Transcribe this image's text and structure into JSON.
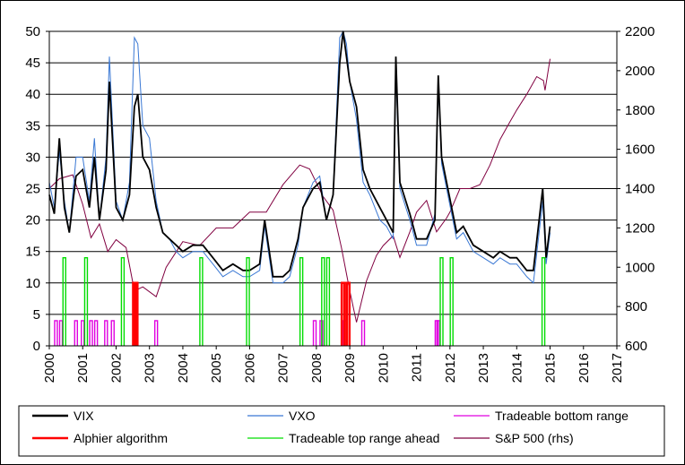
{
  "chart_data": {
    "type": "line",
    "title": "",
    "xlabel": "",
    "ylabel": "",
    "y2label": "",
    "x_ticks": [
      "2000",
      "2001",
      "2002",
      "2003",
      "2004",
      "2005",
      "2006",
      "2007",
      "2008",
      "2009",
      "2010",
      "2011",
      "2012",
      "2013",
      "2014",
      "2015",
      "2016",
      "2017"
    ],
    "xlim": [
      2000,
      2017
    ],
    "y_left_ticks": [
      "0",
      "5",
      "10",
      "15",
      "20",
      "25",
      "30",
      "35",
      "40",
      "45",
      "50"
    ],
    "ylim": [
      0,
      50
    ],
    "y_right_ticks": [
      "600",
      "800",
      "1000",
      "1200",
      "1400",
      "1600",
      "1800",
      "2000",
      "2200"
    ],
    "y2lim": [
      600,
      2200
    ],
    "grid": "horizontal",
    "legend_position": "bottom",
    "series": [
      {
        "name": "VIX",
        "axis": "left",
        "color": "#000000",
        "x": [
          2000.0,
          2000.15,
          2000.3,
          2000.45,
          2000.6,
          2000.8,
          2001.0,
          2001.2,
          2001.35,
          2001.5,
          2001.7,
          2001.8,
          2002.0,
          2002.2,
          2002.4,
          2002.55,
          2002.65,
          2002.8,
          2003.0,
          2003.2,
          2003.4,
          2003.6,
          2003.8,
          2004.0,
          2004.3,
          2004.6,
          2004.9,
          2005.2,
          2005.5,
          2005.8,
          2006.0,
          2006.3,
          2006.45,
          2006.7,
          2007.0,
          2007.2,
          2007.45,
          2007.6,
          2007.9,
          2008.1,
          2008.3,
          2008.5,
          2008.7,
          2008.8,
          2008.9,
          2009.0,
          2009.2,
          2009.4,
          2009.6,
          2009.9,
          2010.1,
          2010.3,
          2010.38,
          2010.5,
          2010.8,
          2011.0,
          2011.3,
          2011.55,
          2011.65,
          2011.75,
          2011.9,
          2012.2,
          2012.4,
          2012.7,
          2013.0,
          2013.3,
          2013.5,
          2013.8,
          2014.0,
          2014.3,
          2014.5,
          2014.78,
          2014.88,
          2015.0
        ],
        "values": [
          24,
          21,
          33,
          22,
          18,
          27,
          28,
          22,
          30,
          20,
          28,
          42,
          22,
          20,
          24,
          38,
          40,
          30,
          28,
          22,
          18,
          17,
          16,
          15,
          16,
          16,
          14,
          12,
          13,
          12,
          12,
          13,
          20,
          11,
          11,
          12,
          17,
          22,
          25,
          26,
          20,
          24,
          45,
          57,
          46,
          42,
          38,
          28,
          25,
          22,
          20,
          18,
          46,
          26,
          21,
          17,
          17,
          20,
          43,
          30,
          26,
          18,
          19,
          16,
          15,
          14,
          15,
          14,
          14,
          12,
          12,
          25,
          14,
          19
        ]
      },
      {
        "name": "VXO",
        "axis": "left",
        "color": "#3a78d4",
        "x": [
          2000.0,
          2000.15,
          2000.3,
          2000.45,
          2000.6,
          2000.8,
          2001.0,
          2001.2,
          2001.35,
          2001.5,
          2001.7,
          2001.8,
          2002.0,
          2002.2,
          2002.4,
          2002.55,
          2002.65,
          2002.8,
          2003.0,
          2003.2,
          2003.4,
          2003.6,
          2003.8,
          2004.0,
          2004.3,
          2004.6,
          2004.9,
          2005.2,
          2005.5,
          2005.8,
          2006.0,
          2006.3,
          2006.45,
          2006.7,
          2007.0,
          2007.2,
          2007.45,
          2007.6,
          2007.9,
          2008.1,
          2008.3,
          2008.5,
          2008.7,
          2008.8,
          2008.9,
          2009.0,
          2009.2,
          2009.4,
          2009.6,
          2009.9,
          2010.1,
          2010.3,
          2010.38,
          2010.5,
          2010.8,
          2011.0,
          2011.3,
          2011.55,
          2011.65,
          2011.75,
          2011.9,
          2012.2,
          2012.4,
          2012.7,
          2013.0,
          2013.3,
          2013.5,
          2013.8,
          2014.0,
          2014.3,
          2014.5,
          2014.78,
          2014.88,
          2015.0
        ],
        "values": [
          26,
          22,
          31,
          23,
          18,
          30,
          30,
          23,
          33,
          20,
          30,
          46,
          23,
          20,
          26,
          49,
          48,
          35,
          33,
          23,
          18,
          17,
          15,
          14,
          15,
          15,
          13,
          11,
          12,
          11,
          11,
          12,
          19,
          10,
          10,
          11,
          16,
          22,
          26,
          27,
          20,
          24,
          49,
          61,
          48,
          42,
          36,
          26,
          24,
          20,
          19,
          17,
          44,
          25,
          20,
          16,
          16,
          21,
          42,
          29,
          25,
          17,
          18,
          15,
          14,
          13,
          14,
          13,
          13,
          11,
          10,
          23,
          13,
          18
        ]
      },
      {
        "name": "Tradeable bottom range",
        "axis": "left",
        "color": "#e000e0",
        "x": [
          2000.2,
          2000.35,
          2000.8,
          2001.0,
          2001.25,
          2001.4,
          2001.7,
          2001.9,
          2002.55,
          2003.2,
          2007.95,
          2008.15,
          2008.85,
          2009.4,
          2011.6,
          2011.65
        ],
        "values": [
          4,
          4,
          4,
          4,
          4,
          4,
          4,
          4,
          4,
          4,
          4,
          4,
          4,
          4,
          4,
          4
        ]
      },
      {
        "name": "Alphier algorithm",
        "axis": "left",
        "color": "#ff0000",
        "x": [
          2002.55,
          2002.6,
          2008.8,
          2008.95
        ],
        "values": [
          10,
          10,
          10,
          10
        ]
      },
      {
        "name": "Tradeable top range ahead",
        "axis": "left",
        "color": "#00dd00",
        "x": [
          2000.45,
          2001.1,
          2002.2,
          2004.55,
          2005.95,
          2007.55,
          2008.2,
          2008.35,
          2011.75,
          2012.05,
          2014.8
        ],
        "values": [
          14,
          14,
          14,
          14,
          14,
          14,
          14,
          14,
          14,
          14,
          14
        ]
      },
      {
        "name": "S&P 500 (rhs)",
        "axis": "right",
        "color": "#800040",
        "x": [
          2000.0,
          2000.3,
          2000.7,
          2001.0,
          2001.25,
          2001.5,
          2001.75,
          2002.0,
          2002.3,
          2002.55,
          2002.8,
          2003.2,
          2003.5,
          2004.0,
          2004.5,
          2005.0,
          2005.5,
          2006.0,
          2006.5,
          2007.0,
          2007.5,
          2007.8,
          2008.2,
          2008.5,
          2008.75,
          2009.0,
          2009.2,
          2009.5,
          2009.8,
          2010.0,
          2010.3,
          2010.5,
          2010.8,
          2011.0,
          2011.3,
          2011.6,
          2011.9,
          2012.0,
          2012.3,
          2012.6,
          2012.9,
          2013.2,
          2013.5,
          2013.8,
          2014.0,
          2014.3,
          2014.6,
          2014.8,
          2014.85,
          2015.0
        ],
        "values": [
          1400,
          1450,
          1470,
          1320,
          1150,
          1220,
          1080,
          1140,
          1100,
          880,
          900,
          850,
          1000,
          1130,
          1110,
          1200,
          1200,
          1280,
          1280,
          1420,
          1520,
          1500,
          1360,
          1290,
          1100,
          880,
          720,
          930,
          1060,
          1110,
          1160,
          1050,
          1180,
          1280,
          1340,
          1180,
          1250,
          1280,
          1400,
          1400,
          1420,
          1520,
          1650,
          1740,
          1800,
          1880,
          1970,
          1950,
          1900,
          2060
        ]
      }
    ]
  },
  "legend": {
    "items": [
      {
        "label": "VIX",
        "color": "#000000"
      },
      {
        "label": "VXO",
        "color": "#3a78d4"
      },
      {
        "label": "Tradeable bottom range",
        "color": "#e000e0"
      },
      {
        "label": "Alphier algorithm",
        "color": "#ff0000"
      },
      {
        "label": "Tradeable top range ahead",
        "color": "#00dd00"
      },
      {
        "label": "S&P 500 (rhs)",
        "color": "#800040"
      }
    ]
  }
}
